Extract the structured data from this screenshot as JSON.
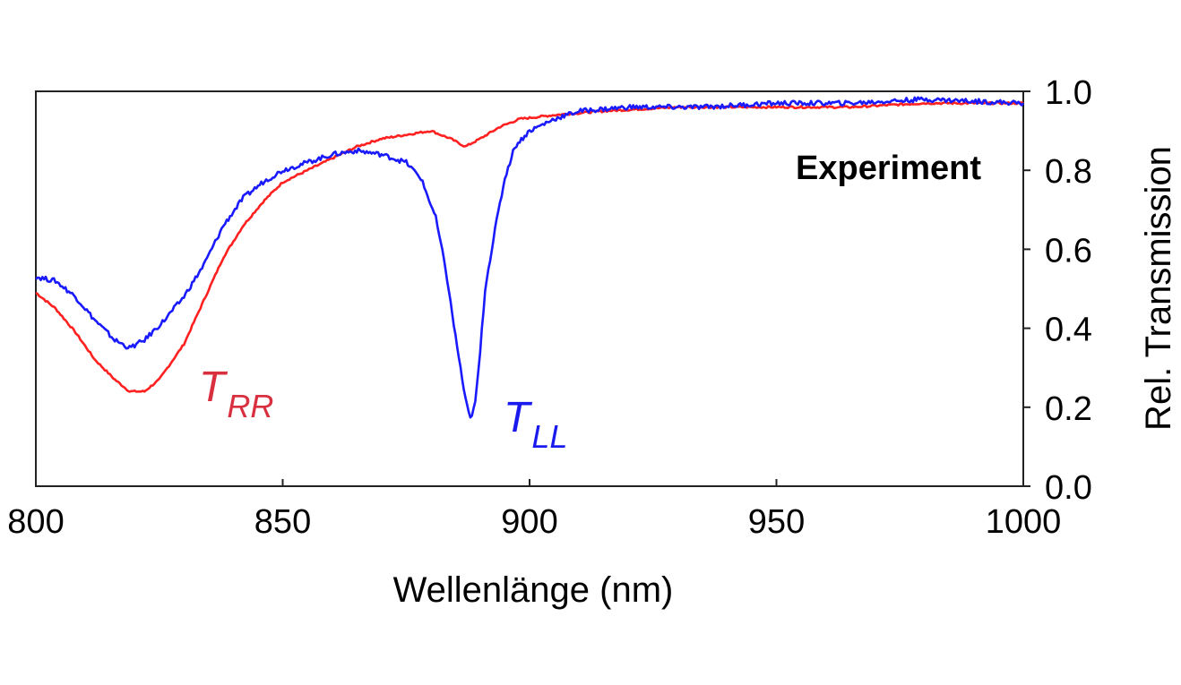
{
  "chart_data": {
    "type": "line",
    "xlabel": "Wellenlänge (nm)",
    "ylabel": "Rel. Transmission",
    "xlim": [
      800,
      1000
    ],
    "ylim": [
      0.0,
      1.0
    ],
    "x_ticks": [
      "800",
      "850",
      "900",
      "950",
      "1000"
    ],
    "y_ticks": [
      "0.0",
      "0.2",
      "0.4",
      "0.6",
      "0.8",
      "1.0"
    ],
    "y_axis_side": "right",
    "grid": false,
    "annotation": "Experiment",
    "series": [
      {
        "label_main": "T",
        "label_sub": "RR",
        "color": "#ff2020",
        "label_color": "#d9303f",
        "points": [
          [
            800,
            0.49
          ],
          [
            804,
            0.45
          ],
          [
            808,
            0.39
          ],
          [
            812,
            0.32
          ],
          [
            816,
            0.27
          ],
          [
            819,
            0.24
          ],
          [
            822,
            0.24
          ],
          [
            825,
            0.27
          ],
          [
            830,
            0.36
          ],
          [
            834,
            0.47
          ],
          [
            838,
            0.58
          ],
          [
            842,
            0.66
          ],
          [
            846,
            0.72
          ],
          [
            850,
            0.77
          ],
          [
            855,
            0.8
          ],
          [
            860,
            0.83
          ],
          [
            865,
            0.86
          ],
          [
            870,
            0.88
          ],
          [
            875,
            0.89
          ],
          [
            880,
            0.9
          ],
          [
            884,
            0.88
          ],
          [
            887,
            0.86
          ],
          [
            890,
            0.88
          ],
          [
            894,
            0.91
          ],
          [
            898,
            0.93
          ],
          [
            905,
            0.94
          ],
          [
            915,
            0.95
          ],
          [
            930,
            0.96
          ],
          [
            950,
            0.96
          ],
          [
            965,
            0.96
          ],
          [
            980,
            0.97
          ],
          [
            1000,
            0.97
          ]
        ]
      },
      {
        "label_main": "T",
        "label_sub": "LL",
        "color": "#1a1aff",
        "label_color": "#1a1aee",
        "points": [
          [
            800,
            0.53
          ],
          [
            804,
            0.52
          ],
          [
            808,
            0.48
          ],
          [
            812,
            0.42
          ],
          [
            816,
            0.37
          ],
          [
            819,
            0.35
          ],
          [
            822,
            0.37
          ],
          [
            826,
            0.42
          ],
          [
            830,
            0.48
          ],
          [
            834,
            0.56
          ],
          [
            838,
            0.66
          ],
          [
            842,
            0.73
          ],
          [
            846,
            0.77
          ],
          [
            850,
            0.8
          ],
          [
            855,
            0.82
          ],
          [
            860,
            0.84
          ],
          [
            865,
            0.85
          ],
          [
            870,
            0.84
          ],
          [
            875,
            0.82
          ],
          [
            878,
            0.78
          ],
          [
            881,
            0.68
          ],
          [
            883,
            0.55
          ],
          [
            885,
            0.38
          ],
          [
            887,
            0.22
          ],
          [
            888,
            0.17
          ],
          [
            889,
            0.21
          ],
          [
            890,
            0.34
          ],
          [
            891,
            0.5
          ],
          [
            893,
            0.65
          ],
          [
            895,
            0.78
          ],
          [
            897,
            0.86
          ],
          [
            900,
            0.9
          ],
          [
            905,
            0.93
          ],
          [
            910,
            0.95
          ],
          [
            920,
            0.96
          ],
          [
            935,
            0.96
          ],
          [
            950,
            0.97
          ],
          [
            965,
            0.97
          ],
          [
            980,
            0.98
          ],
          [
            1000,
            0.97
          ]
        ]
      }
    ]
  }
}
